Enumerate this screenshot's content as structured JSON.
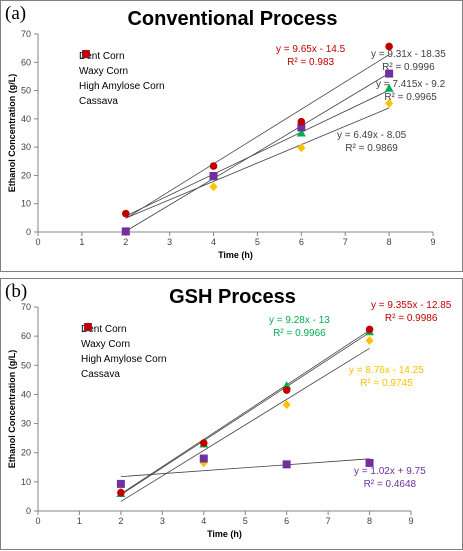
{
  "chart_data": [
    {
      "type": "scatter",
      "panel_label": "(a)",
      "title": "Conventional Process",
      "xlabel": "Time (h)",
      "ylabel": "Ethanol Concentration (g/L)",
      "xlim": [
        0,
        9
      ],
      "ylim": [
        0,
        70
      ],
      "x_ticks": [
        "0",
        "1",
        "2",
        "3",
        "4",
        "5",
        "6",
        "7",
        "8",
        "9"
      ],
      "y_ticks": [
        "0",
        "10",
        "20",
        "30",
        "40",
        "50",
        "60",
        "70"
      ],
      "grid": false,
      "legend_position": "top-left",
      "x": [
        2,
        4,
        6,
        8
      ],
      "series": [
        {
          "name": "Dent Corn",
          "marker": "triangle",
          "color": "#00b050",
          "values": [
            0.2,
            19.5,
            35.0,
            50.8
          ]
        },
        {
          "name": "Waxy Corn",
          "marker": "diamond",
          "color": "#ffc000",
          "values": [
            0.2,
            16.0,
            29.8,
            45.5
          ]
        },
        {
          "name": "High Amylose Corn",
          "marker": "square",
          "color": "#7030a0",
          "values": [
            0.2,
            19.8,
            37.0,
            56.0
          ]
        },
        {
          "name": "Cassava",
          "marker": "circle",
          "color": "#c00000",
          "values": [
            6.5,
            23.3,
            39.0,
            65.6
          ]
        }
      ],
      "trendlines": [
        {
          "slope": 9.65,
          "intercept": -14.5,
          "x_range": [
            2,
            8
          ]
        },
        {
          "slope": 9.31,
          "intercept": -18.35,
          "x_range": [
            2,
            8
          ]
        },
        {
          "slope": 7.415,
          "intercept": -9.2,
          "x_range": [
            2,
            8
          ]
        },
        {
          "slope": 6.49,
          "intercept": -8.05,
          "x_range": [
            2,
            8
          ]
        }
      ],
      "annotations": [
        {
          "equation": "y = 9.65x - 14.5",
          "r2": "R² = 0.983",
          "color": "#c00000"
        },
        {
          "equation": "y = 9.31x - 18.35",
          "r2": "R² = 0.9996",
          "color": "#404040"
        },
        {
          "equation": "y = 7.415x - 9.2",
          "r2": "R² = 0.9965",
          "color": "#404040"
        },
        {
          "equation": "y = 6.49x - 8.05",
          "r2": "R² = 0.9869",
          "color": "#404040"
        }
      ]
    },
    {
      "type": "scatter",
      "panel_label": "(b)",
      "title": "GSH Process",
      "xlabel": "Time (h)",
      "ylabel": "Ethanol Concentration (g/L)",
      "xlim": [
        0,
        9
      ],
      "ylim": [
        0,
        70
      ],
      "x_ticks": [
        "0",
        "1",
        "2",
        "3",
        "4",
        "5",
        "6",
        "7",
        "8",
        "9"
      ],
      "y_ticks": [
        "0",
        "10",
        "20",
        "30",
        "40",
        "50",
        "60",
        "70"
      ],
      "grid": false,
      "legend_position": "top-left",
      "x": [
        2,
        4,
        6,
        8
      ],
      "series": [
        {
          "name": "Dent Corn",
          "marker": "triangle",
          "color": "#00b050",
          "values": [
            6.0,
            23.0,
            43.0,
            61.5
          ]
        },
        {
          "name": "Waxy Corn",
          "marker": "diamond",
          "color": "#ffc000",
          "values": [
            6.5,
            16.5,
            36.5,
            58.5
          ]
        },
        {
          "name": "High Amylose Corn",
          "marker": "square",
          "color": "#7030a0",
          "values": [
            9.3,
            18.0,
            16.0,
            16.5
          ]
        },
        {
          "name": "Cassava",
          "marker": "circle",
          "color": "#c00000",
          "values": [
            6.3,
            23.3,
            41.5,
            62.3
          ]
        }
      ],
      "trendlines": [
        {
          "slope": 9.355,
          "intercept": -12.85,
          "x_range": [
            2,
            8
          ]
        },
        {
          "slope": 9.28,
          "intercept": -13,
          "x_range": [
            2,
            8
          ]
        },
        {
          "slope": 8.76,
          "intercept": -14.25,
          "x_range": [
            2,
            8
          ]
        },
        {
          "slope": 1.02,
          "intercept": 9.75,
          "x_range": [
            2,
            8
          ]
        }
      ],
      "annotations": [
        {
          "equation": "y = 9.355x - 12.85",
          "r2": "R² = 0.9986",
          "color": "#c00000"
        },
        {
          "equation": "y = 9.28x - 13",
          "r2": "R² = 0.9966",
          "color": "#00b050"
        },
        {
          "equation": "y = 8.76x - 14.25",
          "r2": "R² = 0.9745",
          "color": "#ffc000"
        },
        {
          "equation": "y = 1.02x + 9.75",
          "r2": "R² = 0.4648",
          "color": "#7030a0"
        }
      ]
    }
  ]
}
